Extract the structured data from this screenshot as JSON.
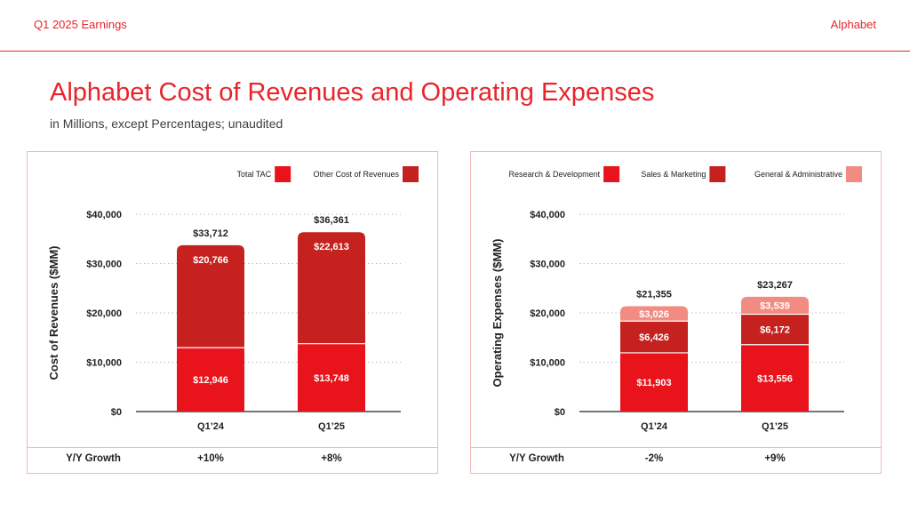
{
  "header": {
    "left": "Q1 2025 Earnings",
    "right": "Alphabet"
  },
  "title": "Alphabet Cost of Revenues and Operating Expenses",
  "subtitle": "in Millions, except Percentages; unaudited",
  "colors": {
    "accent": "#e8242b",
    "tac": "#e8131b",
    "other_cost": "#c5221f",
    "rd": "#e8131b",
    "sm": "#c5221f",
    "ga": "#f28b82"
  },
  "chart_data": [
    {
      "type": "bar",
      "stacked": true,
      "ylabel": "Cost of Revenues ($MM)",
      "ylim": [
        0,
        40000
      ],
      "yticks": [
        0,
        10000,
        20000,
        30000,
        40000
      ],
      "ytick_labels": [
        "$0",
        "$10,000",
        "$20,000",
        "$30,000",
        "$40,000"
      ],
      "categories": [
        "Q1’24",
        "Q1’25"
      ],
      "series": [
        {
          "name": "Total TAC",
          "color": "#e8131b",
          "values": [
            12946,
            13748
          ],
          "labels": [
            "$12,946",
            "$13,748"
          ]
        },
        {
          "name": "Other Cost of Revenues",
          "color": "#c5221f",
          "values": [
            20766,
            22613
          ],
          "labels": [
            "$20,766",
            "$22,613"
          ]
        }
      ],
      "totals": [
        33712,
        36361
      ],
      "total_labels": [
        "$33,712",
        "$36,361"
      ],
      "legend": "top-right",
      "grid": true,
      "growth_label": "Y/Y Growth",
      "growth": [
        "+10%",
        "+8%"
      ]
    },
    {
      "type": "bar",
      "stacked": true,
      "ylabel": "Operating Expenses ($MM)",
      "ylim": [
        0,
        40000
      ],
      "yticks": [
        0,
        10000,
        20000,
        30000,
        40000
      ],
      "ytick_labels": [
        "$0",
        "$10,000",
        "$20,000",
        "$30,000",
        "$40,000"
      ],
      "categories": [
        "Q1’24",
        "Q1’25"
      ],
      "series": [
        {
          "name": "Research & Development",
          "color": "#e8131b",
          "values": [
            11903,
            13556
          ],
          "labels": [
            "$11,903",
            "$13,556"
          ]
        },
        {
          "name": "Sales & Marketing",
          "color": "#c5221f",
          "values": [
            6426,
            6172
          ],
          "labels": [
            "$6,426",
            "$6,172"
          ]
        },
        {
          "name": "General & Administrative",
          "color": "#f28b82",
          "values": [
            3026,
            3539
          ],
          "labels": [
            "$3,026",
            "$3,539"
          ]
        }
      ],
      "totals": [
        21355,
        23267
      ],
      "total_labels": [
        "$21,355",
        "$23,267"
      ],
      "legend": "top-right",
      "grid": true,
      "growth_label": "Y/Y Growth",
      "growth": [
        "-2%",
        "+9%"
      ]
    }
  ]
}
